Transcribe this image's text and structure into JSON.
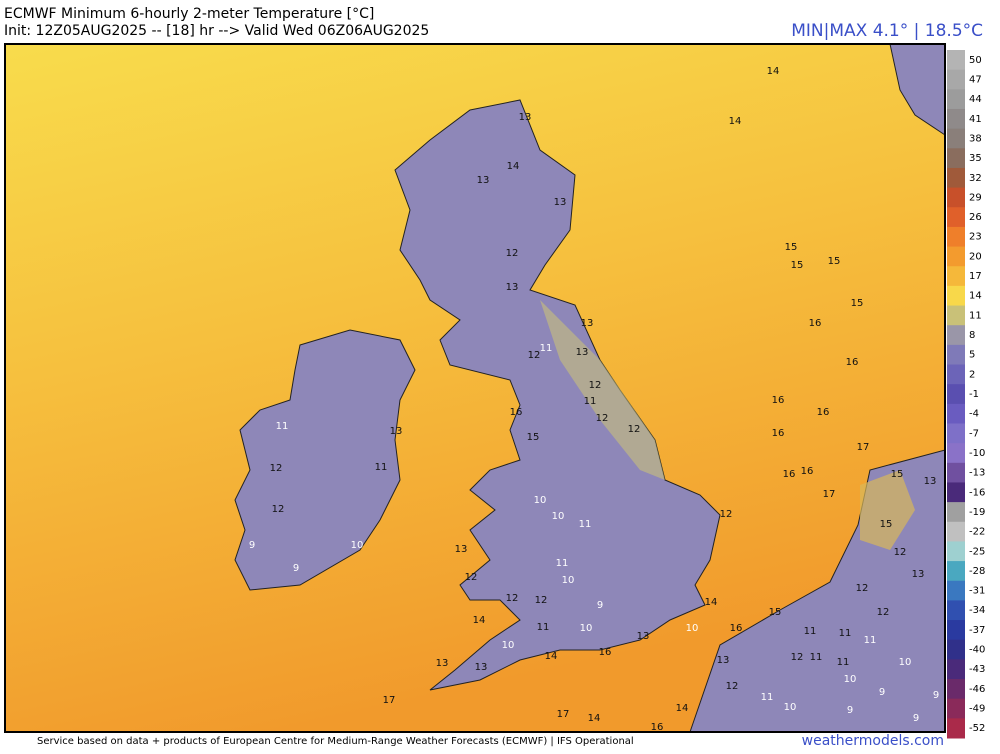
{
  "header": {
    "title": "ECMWF Minimum 6-hourly 2-meter Temperature [°C]",
    "subtitle": "Init: 12Z05AUG2025 -- [18] hr --> Valid Wed 06Z06AUG2025",
    "minmax": "MIN|MAX 4.1° | 18.5°C"
  },
  "colorbar": {
    "ticks": [
      50,
      47,
      44,
      41,
      38,
      35,
      32,
      29,
      26,
      23,
      20,
      17,
      14,
      11,
      8,
      5,
      2,
      -1,
      -4,
      -7,
      -10,
      -13,
      -16,
      -19,
      -22,
      -25,
      -28,
      -31,
      -34,
      -37,
      -40,
      -43,
      -46,
      -49,
      -52
    ],
    "colors": [
      "#b4b4b4",
      "#a8a8a8",
      "#9c9c9c",
      "#8f8a8a",
      "#8a7f7a",
      "#8a6d5e",
      "#a05a3a",
      "#c8502a",
      "#e0602a",
      "#ef7f2a",
      "#f39b2e",
      "#f5b83a",
      "#f8d84a",
      "#c9c178",
      "#9a96a8",
      "#7f7ab8",
      "#6c64b8",
      "#5a4fb0",
      "#6a5cc0",
      "#7e70c8",
      "#8a72c8",
      "#7050a0",
      "#4a2a7a",
      "#a0a0a0",
      "#c0c0c0",
      "#9ed0d0",
      "#4aa8c0",
      "#3a78c0",
      "#3050b0",
      "#2a3aa0",
      "#30308a",
      "#4a2a7a",
      "#6a2a6a",
      "#8a2a5a",
      "#aa2a4a"
    ]
  },
  "map_values": [
    14,
    14,
    13,
    14,
    13,
    13,
    12,
    13,
    15,
    15,
    15,
    15,
    16,
    16,
    16,
    16,
    16,
    17,
    16,
    16,
    17,
    13,
    12,
    11,
    13,
    12,
    11,
    12,
    12,
    16,
    15,
    13,
    11,
    12,
    11,
    12,
    9,
    9,
    10,
    13,
    12,
    10,
    10,
    11,
    11,
    10,
    9,
    12,
    12,
    11,
    10,
    13,
    14,
    10,
    14,
    16,
    13,
    13,
    17,
    17,
    14,
    14,
    13,
    12,
    11,
    10,
    9,
    9,
    9,
    9,
    13,
    15,
    15,
    12,
    13,
    12,
    12,
    11,
    10,
    12,
    14,
    10,
    16,
    16,
    15,
    11,
    11,
    12,
    11,
    11,
    10
  ],
  "footer": {
    "credit": "Service based on data + products of European Centre for Medium-Range Weather Forecasts (ECMWF) | IFS Operational",
    "site": "weathermodels.com"
  }
}
